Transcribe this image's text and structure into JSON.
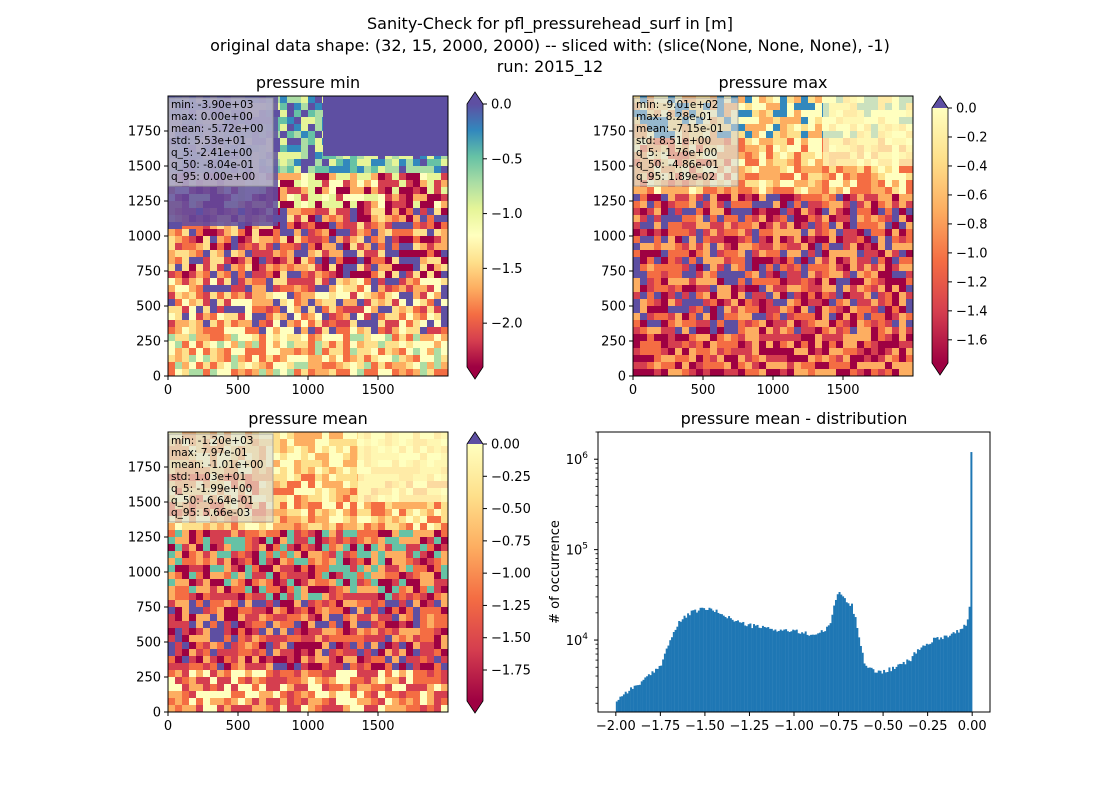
{
  "figure": {
    "suptitle_lines": [
      "Sanity-Check for pfl_pressurehead_surf in [m]",
      "original data shape: (32, 15, 2000, 2000) -- sliced with: (slice(None, None, None), -1)",
      "run: 2015_12"
    ]
  },
  "chart_data": [
    {
      "type": "heatmap",
      "title": "pressure min",
      "xlim": [
        0,
        2000
      ],
      "ylim": [
        0,
        2000
      ],
      "x_ticks": [
        0,
        500,
        1000,
        1500
      ],
      "y_ticks": [
        0,
        250,
        500,
        750,
        1000,
        1250,
        1500,
        1750
      ],
      "colormap": "Spectral",
      "colorbar": {
        "range": [
          -2.4,
          0.0
        ],
        "ticks": [
          "0.0",
          "−0.5",
          "−1.0",
          "−1.5",
          "−2.0"
        ],
        "extend": "both"
      },
      "stats_lines": [
        "min: -3.90e+03",
        "max: 0.00e+00",
        "mean: -5.72e+00",
        "std: 5.53e+01",
        "q_5: -2.41e+00",
        "q_50: -8.04e-01",
        "q_95: 0.00e+00"
      ]
    },
    {
      "type": "heatmap",
      "title": "pressure max",
      "xlim": [
        0,
        2000
      ],
      "ylim": [
        0,
        2000
      ],
      "x_ticks": [
        0,
        500,
        1000,
        1500
      ],
      "y_ticks": [
        0,
        250,
        500,
        750,
        1000,
        1250,
        1500,
        1750
      ],
      "colormap": "Spectral",
      "colorbar": {
        "range": [
          -1.76,
          0.0
        ],
        "ticks": [
          "0.0",
          "−0.2",
          "−0.4",
          "−0.6",
          "−0.8",
          "−1.0",
          "−1.2",
          "−1.4",
          "−1.6"
        ],
        "extend": "both"
      },
      "stats_lines": [
        "min: -9.01e+02",
        "max: 8.28e-01",
        "mean: -7.15e-01",
        "std: 8.51e+00",
        "q_5: -1.76e+00",
        "q_50: -4.86e-01",
        "q_95: 1.89e-02"
      ]
    },
    {
      "type": "heatmap",
      "title": "pressure mean",
      "xlim": [
        0,
        2000
      ],
      "ylim": [
        0,
        2000
      ],
      "x_ticks": [
        0,
        500,
        1000,
        1500
      ],
      "y_ticks": [
        0,
        250,
        500,
        750,
        1000,
        1250,
        1500,
        1750
      ],
      "colormap": "Spectral",
      "colorbar": {
        "range": [
          -1.99,
          0.0
        ],
        "ticks": [
          "0.00",
          "−0.25",
          "−0.50",
          "−0.75",
          "−1.00",
          "−1.25",
          "−1.50",
          "−1.75"
        ],
        "extend": "both"
      },
      "stats_lines": [
        "min: -1.20e+03",
        "max: 7.97e-01",
        "mean: -1.01e+00",
        "std: 1.03e+01",
        "q_5: -1.99e+00",
        "q_50: -6.64e-01",
        "q_95: 5.66e-03"
      ]
    },
    {
      "type": "bar",
      "title": "pressure mean - distribution",
      "xlabel": "",
      "ylabel": "# of occurrence",
      "y_scale": "log",
      "xlim": [
        -2.1,
        0.1
      ],
      "ylim": [
        1600,
        2000000
      ],
      "x_ticks": [
        "−2.00",
        "−1.75",
        "−1.50",
        "−1.25",
        "−1.00",
        "−0.75",
        "−0.50",
        "−0.25",
        "0.00"
      ],
      "y_ticks": [
        {
          "base": "10",
          "exp": "4",
          "value": 10000
        },
        {
          "base": "10",
          "exp": "5",
          "value": 100000
        },
        {
          "base": "10",
          "exp": "6",
          "value": 1000000
        }
      ],
      "bar_color": "#1f77b4",
      "bins": [
        -2.0,
        0.0
      ],
      "x": [
        -2.0,
        -1.95,
        -1.9,
        -1.85,
        -1.8,
        -1.75,
        -1.7,
        -1.65,
        -1.6,
        -1.55,
        -1.5,
        -1.45,
        -1.4,
        -1.35,
        -1.3,
        -1.25,
        -1.2,
        -1.15,
        -1.1,
        -1.05,
        -1.0,
        -0.95,
        -0.9,
        -0.85,
        -0.8,
        -0.775,
        -0.75,
        -0.725,
        -0.7,
        -0.675,
        -0.65,
        -0.625,
        -0.6,
        -0.55,
        -0.5,
        -0.45,
        -0.4,
        -0.35,
        -0.3,
        -0.25,
        -0.2,
        -0.15,
        -0.1,
        -0.05,
        -0.02,
        -0.01,
        0.0
      ],
      "y": [
        2100,
        2600,
        3000,
        3500,
        4200,
        5200,
        9500,
        15000,
        19000,
        21000,
        22500,
        21000,
        19500,
        17000,
        15500,
        14500,
        14000,
        13500,
        13000,
        12800,
        12500,
        12000,
        11500,
        12000,
        14000,
        24000,
        35000,
        30000,
        26000,
        24000,
        16000,
        9000,
        5200,
        4500,
        4500,
        4800,
        5300,
        6000,
        8000,
        9000,
        10500,
        11000,
        12000,
        13500,
        17000,
        30000,
        1200000
      ]
    }
  ]
}
